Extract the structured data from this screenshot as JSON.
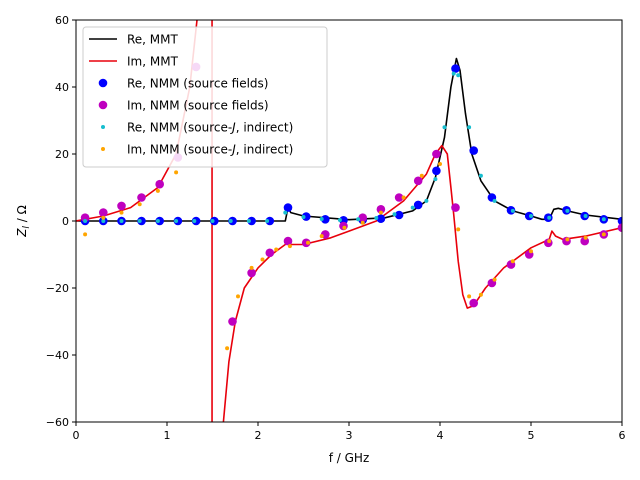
{
  "chart_data": {
    "type": "line",
    "title": "",
    "xlabel": "f / GHz",
    "ylabel_main": "Z",
    "ylabel_sub": "l",
    "ylabel_rest": " / Ω",
    "xlim": [
      0,
      6
    ],
    "ylim": [
      -60,
      60
    ],
    "xticks": [
      0,
      1,
      2,
      3,
      4,
      5,
      6
    ],
    "yticks": [
      -60,
      -40,
      -20,
      0,
      20,
      40,
      60
    ],
    "grid": false,
    "legend_position": "top-left",
    "series": [
      {
        "name": "Re, MMT",
        "kind": "line",
        "color": "#000000",
        "x": [
          0,
          1,
          2.3,
          2.33,
          2.36,
          2.5,
          3,
          3.4,
          3.7,
          3.85,
          3.95,
          4.05,
          4.12,
          4.18,
          4.22,
          4.28,
          4.35,
          4.45,
          4.6,
          4.8,
          5.0,
          5.12,
          5.2,
          5.25,
          5.3,
          5.4,
          5.6,
          6.0
        ],
        "y": [
          0,
          0,
          0,
          4,
          2.5,
          1.5,
          0.4,
          1,
          3,
          6,
          13,
          25,
          40,
          48.5,
          45,
          32,
          20,
          12,
          6,
          3,
          1.5,
          0.5,
          0.5,
          3.5,
          3.8,
          3,
          1.8,
          0.5
        ]
      },
      {
        "name": "Im, MMT",
        "kind": "line",
        "color": "#e8000b",
        "x": [
          0,
          0.3,
          0.6,
          0.9,
          1.1,
          1.25,
          1.33
        ],
        "y": [
          0,
          1.5,
          4,
          10,
          20,
          40,
          60
        ],
        "x2": [
          1.62,
          1.68,
          1.75,
          1.85,
          2.0,
          2.15,
          2.3,
          2.33,
          2.36,
          2.5,
          2.8,
          3.0,
          3.3,
          3.6,
          3.85,
          3.95,
          4.02,
          4.08,
          4.12,
          4.15,
          4.2,
          4.25,
          4.3,
          4.35,
          4.4,
          4.5,
          4.7,
          5.0,
          5.2,
          5.23,
          5.27,
          5.35,
          5.6,
          6.0
        ],
        "y2": [
          -60,
          -42,
          -30,
          -20,
          -14,
          -10,
          -7,
          -5,
          -7,
          -7,
          -5,
          -3,
          0,
          6,
          14,
          20,
          22.5,
          20,
          10,
          2,
          -12,
          -22,
          -26,
          -25.5,
          -24,
          -20,
          -14,
          -8,
          -5.5,
          -3,
          -4.5,
          -5.5,
          -4.5,
          -2
        ]
      },
      {
        "name": "Re, NMM (source fields)",
        "kind": "marker",
        "color": "#0000ff",
        "x": [
          0.1,
          0.3,
          0.5,
          0.72,
          0.92,
          1.12,
          1.32,
          1.52,
          1.72,
          1.93,
          2.13,
          2.33,
          2.53,
          2.74,
          2.94,
          3.15,
          3.35,
          3.55,
          3.76,
          3.96,
          4.17,
          4.37,
          4.57,
          4.78,
          4.98,
          5.19,
          5.39,
          5.59,
          5.8,
          6.0
        ],
        "y": [
          0,
          0,
          0,
          0,
          0,
          0,
          0,
          0,
          0,
          0,
          0,
          4,
          1.3,
          0.5,
          0.2,
          0.3,
          0.7,
          1.8,
          4.8,
          15,
          45.5,
          21,
          7,
          3.2,
          1.5,
          1,
          3.2,
          1.5,
          0.5,
          0
        ]
      },
      {
        "name": "Im, NMM (source fields)",
        "kind": "marker",
        "color": "#bf00bf",
        "x": [
          0.1,
          0.3,
          0.5,
          0.72,
          0.92,
          1.12,
          1.32,
          1.72,
          1.93,
          2.13,
          2.33,
          2.53,
          2.74,
          2.94,
          3.15,
          3.35,
          3.55,
          3.76,
          3.96,
          4.17,
          4.37,
          4.57,
          4.78,
          4.98,
          5.19,
          5.39,
          5.59,
          5.8,
          6.0
        ],
        "y": [
          1,
          2.5,
          4.5,
          7,
          11,
          19,
          46,
          -30,
          -15.5,
          -9.5,
          -6,
          -6.5,
          -4,
          -1.5,
          1,
          3.5,
          7,
          12,
          20,
          4,
          -24.5,
          -18.5,
          -13,
          -10,
          -6.5,
          -6,
          -6,
          -4,
          -2
        ]
      },
      {
        "name": "Re, NMM (source-J, indirect)",
        "kind": "smallmarker",
        "color": "#17becf",
        "x": [
          0.1,
          0.3,
          0.5,
          0.7,
          0.9,
          1.1,
          1.3,
          1.5,
          1.7,
          1.9,
          2.1,
          2.3,
          2.5,
          2.7,
          2.9,
          3.1,
          3.3,
          3.5,
          3.7,
          3.85,
          3.95,
          4.05,
          4.15,
          4.2,
          4.32,
          4.45,
          4.6,
          4.8,
          5.0,
          5.2,
          5.4,
          5.6,
          5.8
        ],
        "y": [
          0,
          0,
          0,
          0,
          0,
          0,
          0,
          0,
          0,
          0,
          0,
          2.5,
          1.2,
          0.6,
          0.3,
          0.5,
          0.9,
          2,
          4,
          6,
          12.5,
          28,
          44,
          43.5,
          28,
          13.5,
          6,
          3,
          1.5,
          1,
          3,
          1.5,
          0.5
        ]
      },
      {
        "name": "Im, NMM (source-J, indirect)",
        "kind": "smallmarker",
        "color": "#ffa500",
        "x": [
          0.1,
          0.3,
          0.5,
          0.7,
          0.9,
          1.1,
          1.66,
          1.78,
          1.93,
          2.05,
          2.2,
          2.35,
          2.55,
          2.7,
          2.95,
          3.15,
          3.35,
          3.6,
          3.8,
          4.0,
          4.2,
          4.32,
          4.45,
          4.6,
          4.8,
          5.0,
          5.2,
          5.4,
          5.6,
          5.8
        ],
        "y": [
          -4,
          1,
          2.5,
          5,
          9,
          14.5,
          -38,
          -22.5,
          -14,
          -11.5,
          -8.5,
          -7.5,
          -6.5,
          -4.5,
          -2,
          -0.5,
          2.5,
          7,
          13.5,
          17,
          -2.5,
          -22.5,
          -22,
          -17.5,
          -12,
          -9,
          -6,
          -5.5,
          -5,
          -4
        ]
      }
    ],
    "legend_entries": [
      "Re, MMT",
      "Im, MMT",
      "Re, NMM (source fields)",
      "Im, NMM (source fields)",
      "Re, NMM (source-",
      "Im, NMM (source-"
    ],
    "legend_italic_part": "J",
    "legend_tail": ", indirect)"
  }
}
